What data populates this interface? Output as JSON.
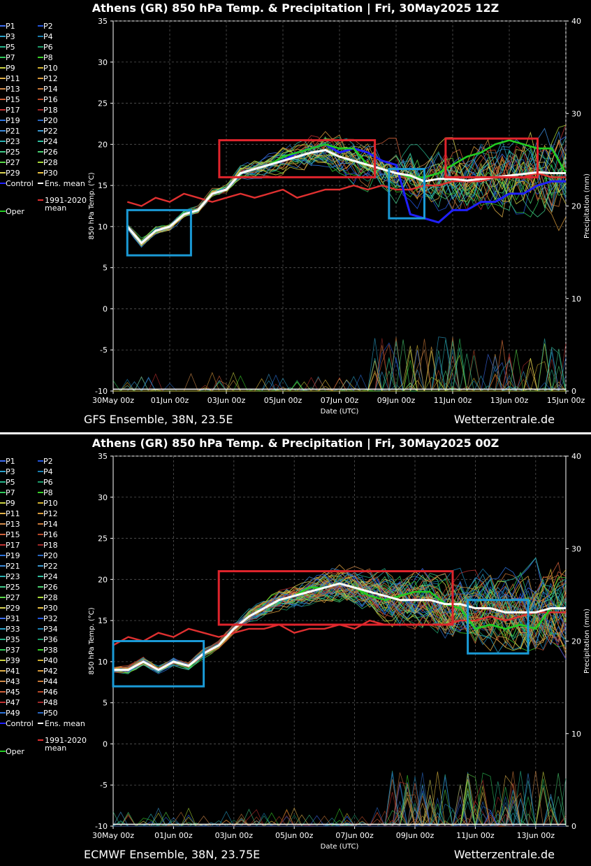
{
  "charts": [
    {
      "id": "gfs",
      "title": "Athens  (GR)  850 hPa Temp. & Precipitation | Fri, 30May2025 12Z",
      "model_label": "GFS Ensemble, 38N, 23.5E",
      "site": "Wetterzentrale.de",
      "x_ticks": [
        "30May 00z",
        "01Jun 00z",
        "03Jun 00z",
        "05Jun 00z",
        "07Jun 00z",
        "09Jun 00z",
        "11Jun 00z",
        "13Jun 00z",
        "15Jun 00z"
      ],
      "members": 30
    },
    {
      "id": "ecmwf",
      "title": "Athens  (GR)  850 hPa Temp. & Precipitation | Fri, 30May2025 00Z",
      "model_label": "ECMWF Ensemble, 38N, 23.75E",
      "site": "Wetterzentrale.de",
      "x_ticks": [
        "30May 00z",
        "01Jun 00z",
        "03Jun 00z",
        "05Jun 00z",
        "07Jun 00z",
        "09Jun 00z",
        "11Jun 00z",
        "13Jun 00z"
      ],
      "members": 50
    }
  ],
  "axes": {
    "xlabel": "Date (UTC)",
    "ylabel_left": "850 hPa Temp. (°C)",
    "ylabel_right": "Precipitation (mm)",
    "y_left_ticks": [
      "35",
      "30",
      "25",
      "20",
      "15",
      "10",
      "5",
      "0",
      "-5",
      "-10"
    ],
    "y_right_ticks": [
      "40",
      "30",
      "20",
      "10",
      "0"
    ]
  },
  "legend_extra": {
    "control": "Control",
    "ens_mean": "Ens. mean",
    "oper": "Oper",
    "clim_1": "1991-2020",
    "clim_2": "mean"
  },
  "colors": {
    "control": "#2020ff",
    "ens_mean": "#ffffff",
    "oper": "#22cc22",
    "clim": "#e03030",
    "box_red": "#e0242c",
    "box_blue": "#1a9ad6"
  },
  "chart_data": [
    {
      "type": "line",
      "title": "Athens  (GR)  850 hPa Temp. & Precipitation | Fri, 30May2025 12Z",
      "xlabel": "Date (UTC)",
      "ylabel": "850 hPa Temp. (°C)",
      "ylim": [
        -10,
        35
      ],
      "y2label": "Precipitation (mm)",
      "y2lim": [
        0,
        40
      ],
      "x_days": [
        0.5,
        1,
        1.5,
        2,
        2.5,
        3,
        3.5,
        4,
        4.5,
        5,
        5.5,
        6,
        6.5,
        7,
        7.5,
        8,
        8.5,
        9,
        9.5,
        10,
        10.5,
        11,
        11.5,
        12,
        12.5,
        13,
        13.5,
        14,
        14.5,
        15,
        15.5,
        16
      ],
      "series": [
        {
          "name": "Ens. mean",
          "values": [
            10,
            8,
            9.5,
            10,
            11.5,
            12,
            14,
            14.5,
            16.5,
            17,
            17.5,
            18,
            18.5,
            19,
            19.3,
            18.5,
            18,
            17.5,
            17,
            16.5,
            16.2,
            15.5,
            15.8,
            15.8,
            15.6,
            15.8,
            16,
            16.2,
            16.4,
            16.6,
            16.5,
            16.5
          ]
        },
        {
          "name": "Control",
          "values": [
            10,
            8,
            9.5,
            10,
            11.5,
            12,
            14,
            14.5,
            16.5,
            17,
            17.5,
            18,
            19,
            19.5,
            20,
            19,
            19.5,
            19,
            18,
            17.5,
            11.5,
            11,
            10.5,
            12,
            12,
            13,
            13,
            14,
            14,
            15,
            15.5,
            15.5
          ]
        },
        {
          "name": "Oper",
          "values": [
            10,
            8,
            9.5,
            10,
            11.5,
            12,
            14,
            14.5,
            16.5,
            17,
            17.5,
            18.5,
            19,
            19.5,
            20,
            19.5,
            19.5,
            17.5,
            17,
            16.5,
            16,
            16,
            16.5,
            17.5,
            18.5,
            19,
            20,
            20.5,
            20,
            19.5,
            19.5,
            16.5
          ]
        },
        {
          "name": "1991-2020 mean",
          "values": [
            13,
            12.5,
            13.5,
            13,
            14,
            13.5,
            13,
            13.5,
            14,
            13.5,
            14,
            14.5,
            13.5,
            14,
            14.5,
            14.5,
            15,
            14.5,
            15,
            14.5,
            14.5,
            15,
            15,
            15.5,
            15.5,
            15.5,
            16,
            16,
            16,
            16.5,
            16,
            16
          ]
        }
      ]
    },
    {
      "type": "line",
      "title": "Athens  (GR)  850 hPa Temp. & Precipitation | Fri, 30May2025 00Z",
      "xlabel": "Date (UTC)",
      "ylabel": "850 hPa Temp. (°C)",
      "ylim": [
        -10,
        35
      ],
      "y2label": "Precipitation (mm)",
      "y2lim": [
        0,
        40
      ],
      "x_days": [
        0,
        0.5,
        1,
        1.5,
        2,
        2.5,
        3,
        3.5,
        4,
        4.5,
        5,
        5.5,
        6,
        6.5,
        7,
        7.5,
        8,
        8.5,
        9,
        9.5,
        10,
        10.5,
        11,
        11.5,
        12,
        12.5,
        13,
        13.5,
        14,
        14.5,
        15
      ],
      "series": [
        {
          "name": "Ens. mean",
          "values": [
            9,
            9,
            10,
            9,
            10,
            9.5,
            11,
            12,
            14,
            15.5,
            16.5,
            17.5,
            18,
            18.5,
            19,
            19.5,
            19,
            18.5,
            18,
            17.5,
            17.5,
            17.5,
            17,
            17,
            16.5,
            16.5,
            16,
            16,
            16,
            16.5,
            16.5
          ]
        },
        {
          "name": "Oper",
          "values": [
            9,
            9,
            10,
            9,
            10,
            9.5,
            11,
            12,
            14,
            15.5,
            16.5,
            17.5,
            18,
            19,
            19,
            19.5,
            19,
            18,
            17.5,
            18,
            18.5,
            18.5,
            17,
            16.5,
            14,
            14.5,
            14,
            14.5,
            14,
            16.5,
            16.5
          ]
        },
        {
          "name": "1991-2020 mean",
          "values": [
            12,
            13,
            12.5,
            13.5,
            13,
            14,
            13.5,
            13,
            13.5,
            14,
            14,
            14.5,
            13.5,
            14,
            14,
            14.5,
            14,
            15,
            14.5,
            14.5,
            14.5,
            14.5,
            14.5,
            15,
            15,
            15.5,
            15,
            15.5,
            16,
            16,
            16
          ]
        }
      ]
    }
  ]
}
